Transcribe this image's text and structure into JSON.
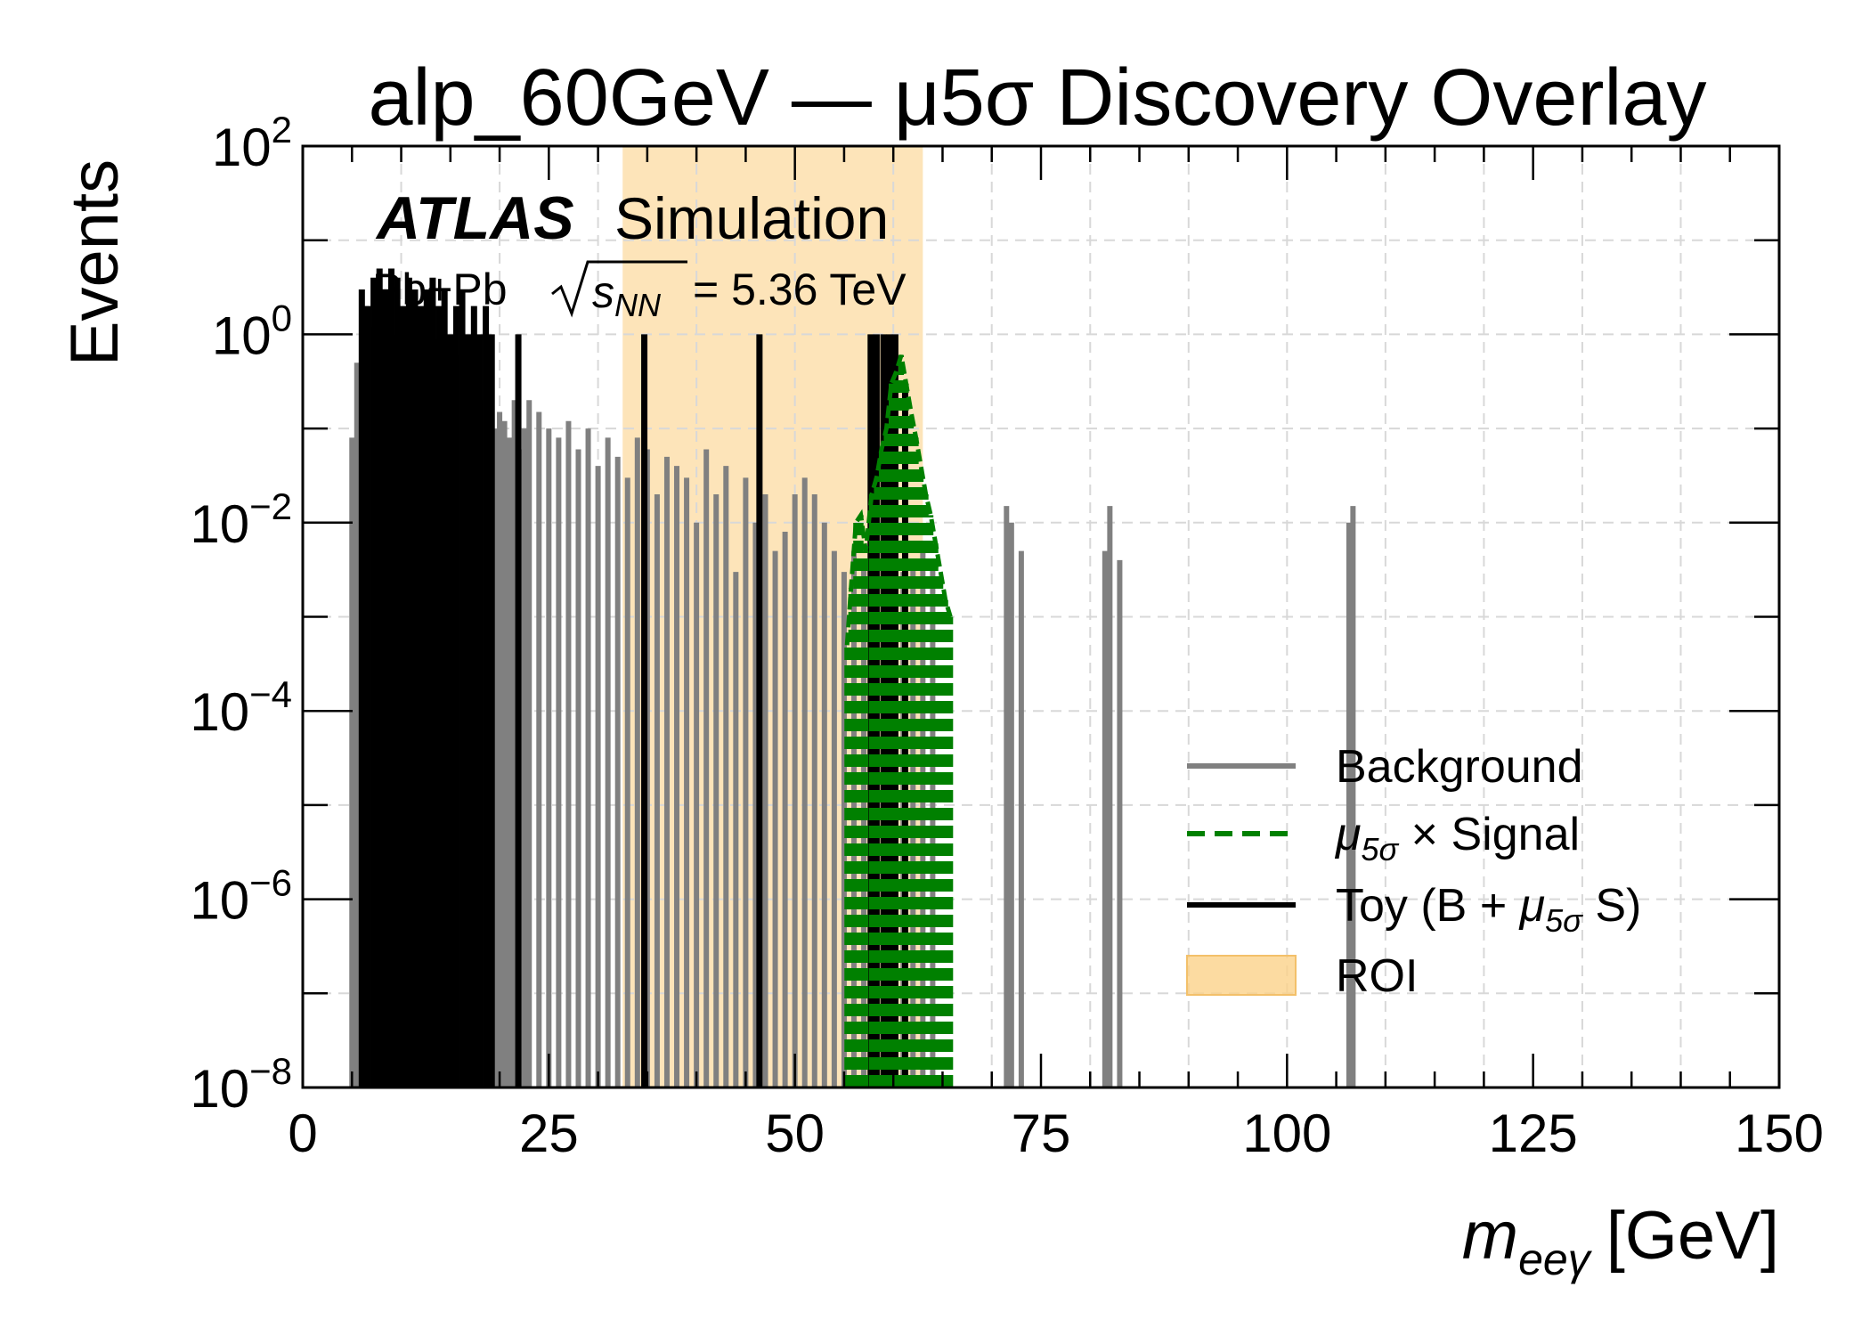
{
  "chart_data": {
    "type": "line",
    "title": "alp_60GeV — μ5σ Discovery Overlay",
    "xlabel_main": "m",
    "xlabel_sub": "eeγ",
    "xlabel_unit": "[GeV]",
    "ylabel": "Events",
    "xlim": [
      0,
      150
    ],
    "ylim": [
      1e-08,
      100
    ],
    "yscale": "log",
    "grid": true,
    "legend_position": "lower-right",
    "x_ticks": [
      "0",
      "25",
      "50",
      "75",
      "100",
      "125",
      "150"
    ],
    "y_ticks": [
      {
        "base": "10",
        "exp": "2"
      },
      {
        "base": "10",
        "exp": "0"
      },
      {
        "base": "10",
        "exp": "−2"
      },
      {
        "base": "10",
        "exp": "−4"
      },
      {
        "base": "10",
        "exp": "−6"
      },
      {
        "base": "10",
        "exp": "−8"
      }
    ],
    "experiment_label": "ATLAS",
    "status_label": "Simulation",
    "collision_label_prefix": "Pb+Pb",
    "collision_label_energy": "= 5.36 TeV",
    "roi": {
      "xmin": 32.5,
      "xmax": 63.0,
      "color": "#fbd28a"
    },
    "legend": [
      {
        "label": "Background",
        "color": "#808080",
        "style": "solid"
      },
      {
        "label": "μ5σ× Signal",
        "color": "#008000",
        "style": "dashed"
      },
      {
        "label": "Toy (B + μ5σ S)",
        "color": "#000000",
        "style": "solid"
      },
      {
        "label": "ROI",
        "color": "#fbd28a",
        "style": "patch"
      }
    ],
    "series": [
      {
        "name": "Background",
        "color": "#808080",
        "x": [
          5.0,
          5.5,
          6.0,
          6.5,
          7.0,
          7.5,
          8.0,
          8.5,
          9.0,
          9.5,
          10.0,
          10.5,
          11.0,
          11.5,
          12.0,
          12.5,
          13.0,
          13.5,
          14.0,
          14.5,
          15.0,
          15.5,
          16.0,
          16.5,
          17.0,
          17.5,
          18.0,
          18.5,
          19.0,
          19.5,
          20.0,
          20.5,
          21.0,
          21.5,
          22.0,
          22.5,
          23.0,
          24.0,
          25.0,
          26.0,
          27.0,
          28.0,
          29.0,
          30.0,
          31.0,
          32.0,
          33.0,
          34.0,
          35.0,
          36.0,
          37.0,
          38.0,
          39.0,
          40.0,
          41.0,
          42.0,
          43.0,
          44.0,
          45.0,
          46.0,
          47.0,
          48.0,
          49.0,
          50.0,
          51.0,
          52.0,
          53.0,
          54.0,
          55.0,
          56.0,
          57.0,
          58.0,
          59.0,
          60.0,
          61.0,
          62.0,
          63.0,
          64.0,
          71.5,
          72.0,
          73.0,
          81.5,
          82.0,
          83.0,
          106.3,
          106.7
        ],
        "y": [
          0.08,
          0.5,
          1.5,
          2.0,
          1.2,
          1.0,
          1.8,
          0.9,
          1.5,
          1.0,
          1.2,
          0.8,
          0.7,
          1.0,
          0.6,
          0.5,
          0.4,
          0.9,
          0.5,
          0.3,
          0.4,
          0.25,
          0.6,
          0.3,
          0.2,
          0.35,
          0.15,
          0.2,
          0.3,
          0.1,
          0.15,
          0.12,
          0.08,
          0.2,
          0.06,
          0.1,
          0.2,
          0.15,
          0.1,
          0.08,
          0.12,
          0.06,
          0.1,
          0.04,
          0.08,
          0.05,
          0.03,
          0.08,
          0.06,
          0.02,
          0.05,
          0.04,
          0.03,
          0.01,
          0.06,
          0.02,
          0.04,
          0.003,
          0.03,
          0.01,
          0.02,
          0.005,
          0.008,
          0.02,
          0.03,
          0.02,
          0.01,
          0.005,
          0.003,
          0.005,
          0.004,
          0.003,
          0.003,
          0.002,
          0.003,
          0.004,
          0.005,
          0.004,
          0.015,
          0.01,
          0.005,
          0.005,
          0.015,
          0.004,
          0.01,
          0.015
        ]
      },
      {
        "name": "μ5σ× Signal",
        "color": "#008000",
        "x": [
          55.3,
          55.7,
          56.2,
          56.7,
          57.2,
          57.8,
          58.3,
          58.8,
          59.3,
          59.8,
          60.3,
          60.8,
          61.3,
          61.8,
          62.3,
          62.8,
          63.3,
          63.8,
          64.3,
          64.8,
          65.3,
          65.8
        ],
        "y": [
          0.0005,
          0.002,
          0.01,
          0.012,
          0.005,
          0.02,
          0.03,
          0.06,
          0.1,
          0.3,
          0.4,
          0.6,
          0.3,
          0.15,
          0.08,
          0.04,
          0.02,
          0.012,
          0.006,
          0.003,
          0.0015,
          0.001
        ]
      },
      {
        "name": "Toy (B + μ5σ S)",
        "color": "#000000",
        "x": [
          6.0,
          6.6,
          7.2,
          7.8,
          8.4,
          9.0,
          9.6,
          10.2,
          10.8,
          11.4,
          12.0,
          12.6,
          13.2,
          13.8,
          14.4,
          15.0,
          15.6,
          16.2,
          16.8,
          17.4,
          18.0,
          18.6,
          19.2,
          21.9,
          34.7,
          46.4,
          57.7,
          58.3,
          59.0,
          59.6,
          60.2,
          61.2
        ],
        "y": [
          3,
          2,
          4,
          5,
          3,
          5,
          4,
          2,
          4,
          3,
          2,
          3,
          4,
          2,
          3,
          1,
          2,
          3,
          1,
          2,
          1,
          2,
          1,
          1,
          1,
          1,
          1,
          1,
          1,
          1,
          1,
          0.3
        ]
      }
    ]
  }
}
